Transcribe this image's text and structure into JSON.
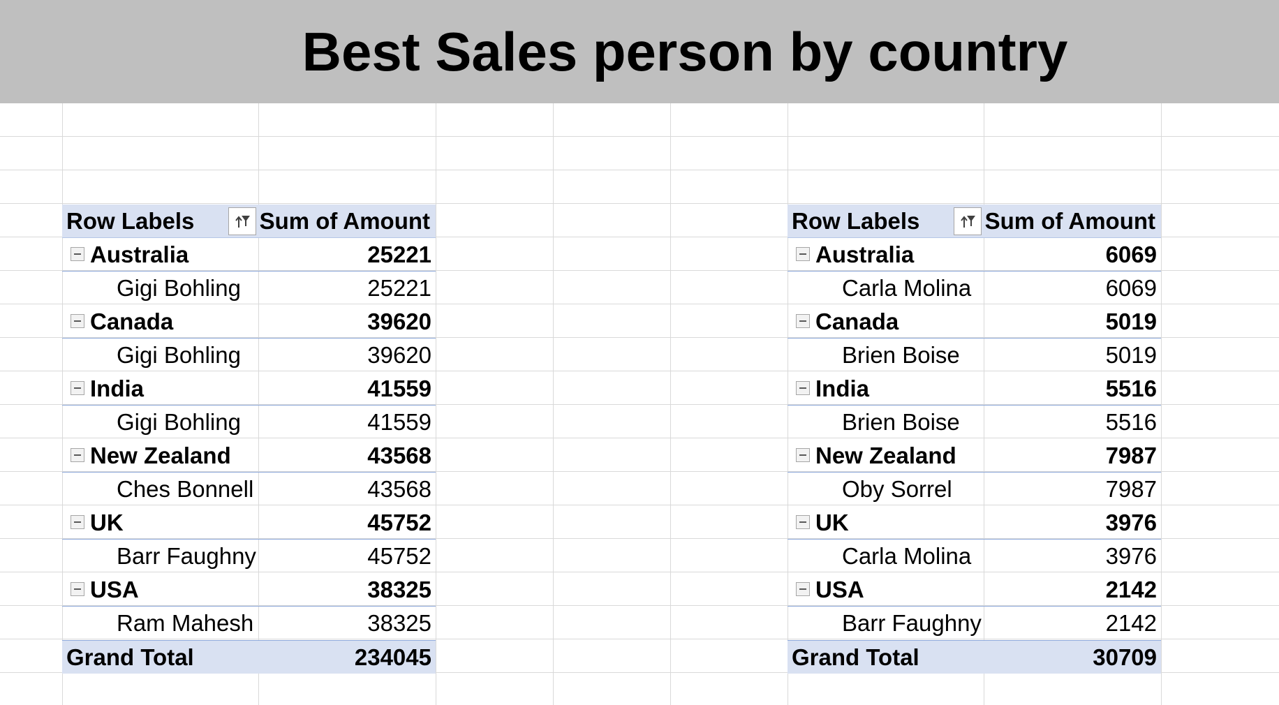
{
  "title": "Best Sales person by country",
  "pivots": [
    {
      "header": {
        "row_labels": "Row Labels",
        "sum_label": "Sum of Amount"
      },
      "groups": [
        {
          "country": "Australia",
          "total": "25221",
          "person": "Gigi Bohling",
          "amount": "25221"
        },
        {
          "country": "Canada",
          "total": "39620",
          "person": "Gigi Bohling",
          "amount": "39620"
        },
        {
          "country": "India",
          "total": "41559",
          "person": "Gigi Bohling",
          "amount": "41559"
        },
        {
          "country": "New Zealand",
          "total": "43568",
          "person": "Ches Bonnell",
          "amount": "43568"
        },
        {
          "country": "UK",
          "total": "45752",
          "person": "Barr Faughny",
          "amount": "45752"
        },
        {
          "country": "USA",
          "total": "38325",
          "person": "Ram Mahesh",
          "amount": "38325"
        }
      ],
      "grand_total": {
        "label": "Grand Total",
        "value": "234045"
      }
    },
    {
      "header": {
        "row_labels": "Row Labels",
        "sum_label": "Sum of Amount"
      },
      "groups": [
        {
          "country": "Australia",
          "total": "6069",
          "person": "Carla Molina",
          "amount": "6069"
        },
        {
          "country": "Canada",
          "total": "5019",
          "person": "Brien Boise",
          "amount": "5019"
        },
        {
          "country": "India",
          "total": "5516",
          "person": "Brien Boise",
          "amount": "5516"
        },
        {
          "country": "New Zealand",
          "total": "7987",
          "person": "Oby Sorrel",
          "amount": "7987"
        },
        {
          "country": "UK",
          "total": "3976",
          "person": "Carla Molina",
          "amount": "3976"
        },
        {
          "country": "USA",
          "total": "2142",
          "person": "Barr Faughny",
          "amount": "2142"
        }
      ],
      "grand_total": {
        "label": "Grand Total",
        "value": "30709"
      }
    }
  ],
  "icons": {
    "filter": "sort-filter-icon",
    "collapse": "collapse-minus-icon"
  }
}
